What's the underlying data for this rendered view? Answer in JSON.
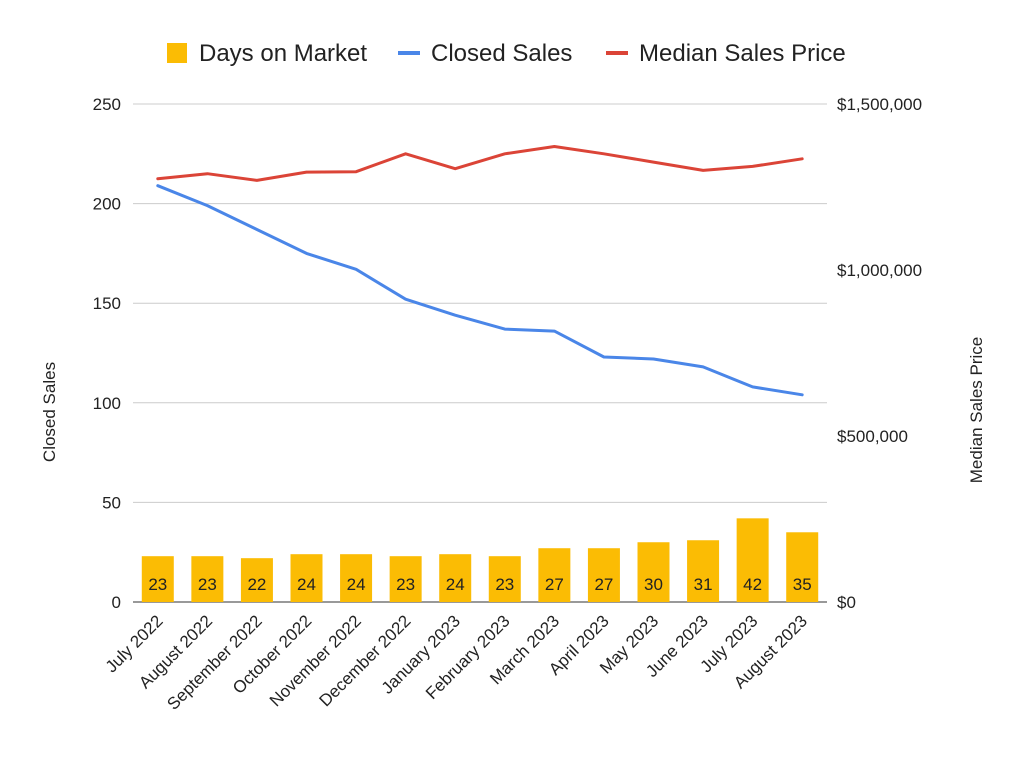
{
  "chart_data": {
    "type": "bar",
    "categories": [
      "July 2022",
      "August 2022",
      "September 2022",
      "October 2022",
      "November 2022",
      "December 2022",
      "January 2023",
      "February 2023",
      "March 2023",
      "April 2023",
      "May 2023",
      "June 2023",
      "July 2023",
      "August 2023"
    ],
    "series": [
      {
        "name": "Days on Market",
        "type": "bar",
        "axis": "left",
        "color": "#fbbc04",
        "values": [
          23,
          23,
          22,
          24,
          24,
          23,
          24,
          23,
          27,
          27,
          30,
          31,
          42,
          35
        ],
        "labels": [
          "23",
          "23",
          "22",
          "24",
          "24",
          "23",
          "24",
          "23",
          "27",
          "27",
          "30",
          "31",
          "42",
          "35"
        ]
      },
      {
        "name": "Closed Sales",
        "type": "line",
        "axis": "left",
        "color": "#4a86e8",
        "values": [
          209,
          199,
          187,
          175,
          167,
          152,
          144,
          137,
          136,
          123,
          122,
          118,
          108,
          104
        ]
      },
      {
        "name": "Median Sales Price",
        "type": "line",
        "axis": "right",
        "color": "#db4437",
        "values": [
          1275000,
          1290000,
          1270000,
          1295000,
          1296000,
          1350000,
          1305000,
          1350000,
          1372000,
          1350000,
          1325000,
          1300000,
          1312000,
          1335000
        ]
      }
    ],
    "y_left": {
      "label": "Closed Sales",
      "min": 0,
      "max": 250,
      "ticks": [
        0,
        50,
        100,
        150,
        200,
        250
      ],
      "tick_labels": [
        "0",
        "50",
        "100",
        "150",
        "200",
        "250"
      ]
    },
    "y_right": {
      "label": "Median Sales Price",
      "min": 0,
      "max": 1500000,
      "ticks": [
        0,
        500000,
        1000000,
        1500000
      ],
      "tick_labels": [
        "$0",
        "$500,000",
        "$1,000,000",
        "$1,500,000"
      ]
    },
    "title": "",
    "xlabel": "",
    "grid": true,
    "legend": "top"
  }
}
